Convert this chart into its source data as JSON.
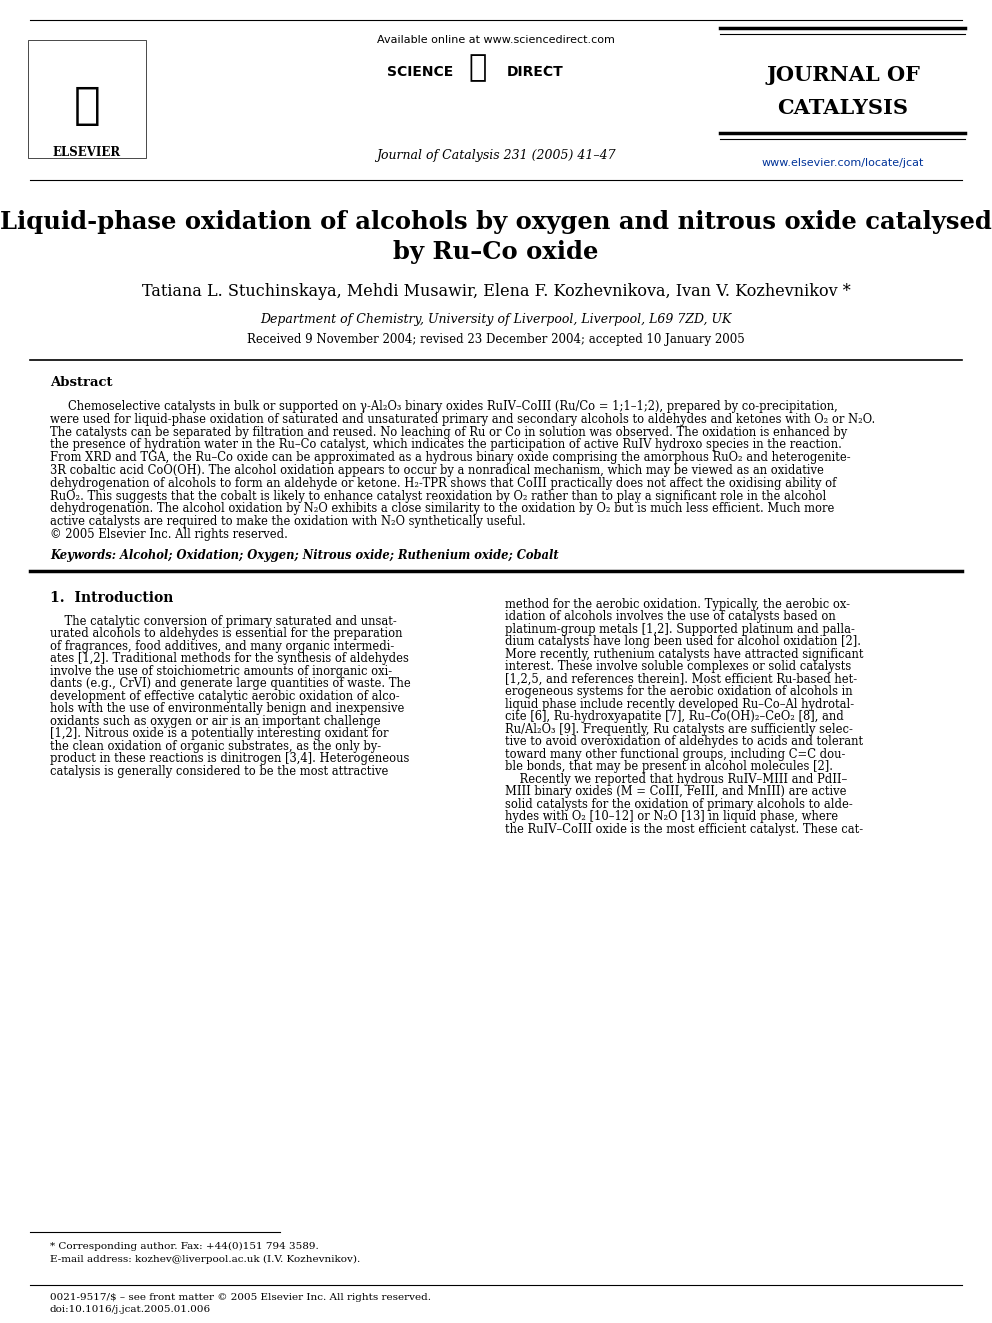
{
  "bg_color": "#ffffff",
  "header": {
    "available_online": "Available online at www.sciencedirect.com",
    "journal_info": "Journal of Catalysis 231 (2005) 41–47",
    "journal_name_line1": "JOURNAL OF",
    "journal_name_line2": "CATALYSIS",
    "journal_url": "www.elsevier.com/locate/jcat",
    "elsevier": "ELSEVIER"
  },
  "title_line1": "Liquid-phase oxidation of alcohols by oxygen and nitrous oxide catalysed",
  "title_line2": "by Ru–Co oxide",
  "authors": "Tatiana L. Stuchinskaya, Mehdi Musawir, Elena F. Kozhevnikova, Ivan V. Kozhevnikov *",
  "affiliation": "Department of Chemistry, University of Liverpool, Liverpool, L69 7ZD, UK",
  "received": "Received 9 November 2004; revised 23 December 2004; accepted 10 January 2005",
  "abstract_title": "Abstract",
  "abstract_lines": [
    "Chemoselective catalysts in bulk or supported on γ-Al₂O₃ binary oxides RuIV–CoIII (Ru/Co = 1;1–1;2), prepared by co-precipitation,",
    "were used for liquid-phase oxidation of saturated and unsaturated primary and secondary alcohols to aldehydes and ketones with O₂ or N₂O.",
    "The catalysts can be separated by filtration and reused. No leaching of Ru or Co in solution was observed. The oxidation is enhanced by",
    "the presence of hydration water in the Ru–Co catalyst, which indicates the participation of active RuIV hydroxo species in the reaction.",
    "From XRD and TGA, the Ru–Co oxide can be approximated as a hydrous binary oxide comprising the amorphous RuO₂ and heterogenite-",
    "3R cobaltic acid CoO(OH). The alcohol oxidation appears to occur by a nonradical mechanism, which may be viewed as an oxidative",
    "dehydrogenation of alcohols to form an aldehyde or ketone. H₂-TPR shows that CoIII practically does not affect the oxidising ability of",
    "RuO₂. This suggests that the cobalt is likely to enhance catalyst reoxidation by O₂ rather than to play a significant role in the alcohol",
    "dehydrogenation. The alcohol oxidation by N₂O exhibits a close similarity to the oxidation by O₂ but is much less efficient. Much more",
    "active catalysts are required to make the oxidation with N₂O synthetically useful.",
    "© 2005 Elsevier Inc. All rights reserved."
  ],
  "keywords": "Keywords: Alcohol; Oxidation; Oxygen; Nitrous oxide; Ruthenium oxide; Cobalt",
  "section1_title": "1.  Introduction",
  "intro_col1_lines": [
    "    The catalytic conversion of primary saturated and unsat-",
    "urated alcohols to aldehydes is essential for the preparation",
    "of fragrances, food additives, and many organic intermedi-",
    "ates [1,2]. Traditional methods for the synthesis of aldehydes",
    "involve the use of stoichiometric amounts of inorganic oxi-",
    "dants (e.g., CrVI) and generate large quantities of waste. The",
    "development of effective catalytic aerobic oxidation of alco-",
    "hols with the use of environmentally benign and inexpensive",
    "oxidants such as oxygen or air is an important challenge",
    "[1,2]. Nitrous oxide is a potentially interesting oxidant for",
    "the clean oxidation of organic substrates, as the only by-",
    "product in these reactions is dinitrogen [3,4]. Heterogeneous",
    "catalysis is generally considered to be the most attractive"
  ],
  "intro_col2_lines": [
    "method for the aerobic oxidation. Typically, the aerobic ox-",
    "idation of alcohols involves the use of catalysts based on",
    "platinum-group metals [1,2]. Supported platinum and palla-",
    "dium catalysts have long been used for alcohol oxidation [2].",
    "More recently, ruthenium catalysts have attracted significant",
    "interest. These involve soluble complexes or solid catalysts",
    "[1,2,5, and references therein]. Most efficient Ru-based het-",
    "erogeneous systems for the aerobic oxidation of alcohols in",
    "liquid phase include recently developed Ru–Co–Al hydrotal-",
    "cite [6], Ru-hydroxyapatite [7], Ru–Co(OH)₂–CeO₂ [8], and",
    "Ru/Al₂O₃ [9]. Frequently, Ru catalysts are sufficiently selec-",
    "tive to avoid overoxidation of aldehydes to acids and tolerant",
    "toward many other functional groups, including C=C dou-",
    "ble bonds, that may be present in alcohol molecules [2].",
    "    Recently we reported that hydrous RuIV–MIII and PdII–",
    "MIII binary oxides (M = CoIII, FeIII, and MnIII) are active",
    "solid catalysts for the oxidation of primary alcohols to alde-",
    "hydes with O₂ [10–12] or N₂O [13] in liquid phase, where",
    "the RuIV–CoIII oxide is the most efficient catalyst. These cat-"
  ],
  "footnote_star": "* Corresponding author. Fax: +44(0)151 794 3589.",
  "footnote_email": "E-mail address: kozhev@liverpool.ac.uk (I.V. Kozhevnikov).",
  "footer_issn": "0021-9517/$ – see front matter © 2005 Elsevier Inc. All rights reserved.",
  "footer_doi": "doi:10.1016/j.jcat.2005.01.006"
}
